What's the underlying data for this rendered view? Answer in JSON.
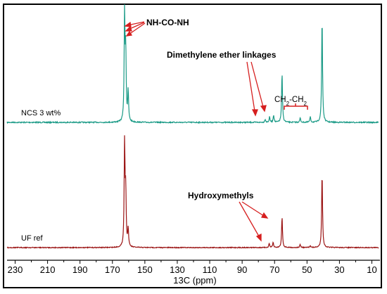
{
  "chart_data": [
    {
      "type": "line",
      "name": "NCS 3 wt%",
      "color": "#1a9a86",
      "x_unit": "ppm",
      "peaks": [
        {
          "x": 162.5,
          "y": 1.0
        },
        {
          "x": 161.8,
          "y": 0.63
        },
        {
          "x": 160.3,
          "y": 0.28
        },
        {
          "x": 75.8,
          "y": 0.03
        },
        {
          "x": 73.1,
          "y": 0.05
        },
        {
          "x": 70.6,
          "y": 0.07
        },
        {
          "x": 65.4,
          "y": 0.46
        },
        {
          "x": 54.2,
          "y": 0.04
        },
        {
          "x": 48.0,
          "y": 0.05
        },
        {
          "x": 40.7,
          "y": 0.98
        }
      ]
    },
    {
      "type": "line",
      "name": "UF ref",
      "color": "#9b1414",
      "x_unit": "ppm",
      "peaks": [
        {
          "x": 162.5,
          "y": 1.0
        },
        {
          "x": 161.8,
          "y": 0.51
        },
        {
          "x": 160.3,
          "y": 0.17
        },
        {
          "x": 73.3,
          "y": 0.04
        },
        {
          "x": 70.9,
          "y": 0.05
        },
        {
          "x": 65.4,
          "y": 0.3
        },
        {
          "x": 54.2,
          "y": 0.03
        },
        {
          "x": 48.0,
          "y": 0.02
        },
        {
          "x": 40.7,
          "y": 0.72
        }
      ]
    }
  ],
  "axis": {
    "xlabel": "13C (ppm)",
    "xlim": [
      235,
      0
    ],
    "ticks": [
      "230",
      "210",
      "190",
      "170",
      "150",
      "130",
      "110",
      "90",
      "70",
      "50",
      "30",
      "10"
    ]
  },
  "labels": {
    "ncs": "NCS 3 wt%",
    "uf": "UF ref",
    "urea": "NH-CO-NH",
    "ether": "Dimethylene ether linkages",
    "ch2_main": "CH",
    "ch2_sub": "2",
    "ch2_dash": "-CH",
    "ch2_sub2": "2",
    "hydroxy": "Hydroxymethyls"
  }
}
